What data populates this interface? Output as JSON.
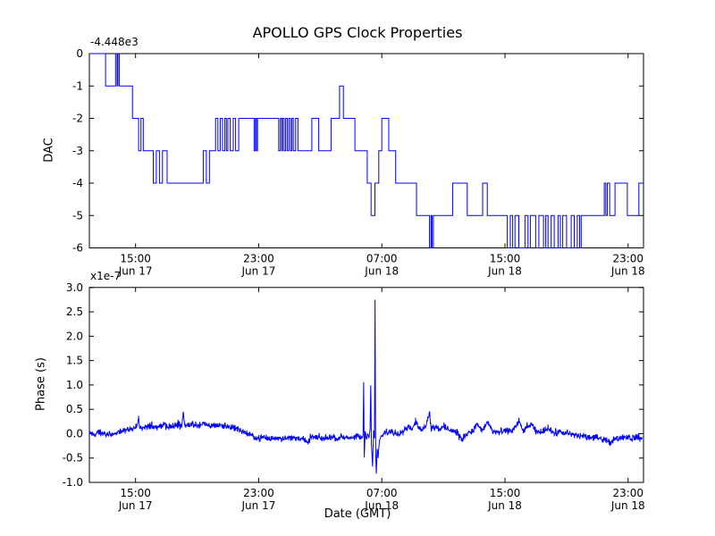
{
  "figure": {
    "title": "APOLLO GPS Clock Properties",
    "background": "#ffffff"
  },
  "colors": {
    "line": "#0000ff",
    "axis": "#000000",
    "text": "#000000"
  },
  "x_axis": {
    "label": "Date (GMT)",
    "range_hours": [
      0,
      36
    ],
    "ticks": [
      {
        "h": 3,
        "time": "15:00",
        "date": "Jun 17"
      },
      {
        "h": 11,
        "time": "23:00",
        "date": "Jun 17"
      },
      {
        "h": 19,
        "time": "07:00",
        "date": "Jun 18"
      },
      {
        "h": 27,
        "time": "15:00",
        "date": "Jun 18"
      },
      {
        "h": 35,
        "time": "23:00",
        "date": "Jun 18"
      }
    ]
  },
  "chart_data": [
    {
      "type": "line",
      "subtype": "steps",
      "title": "APOLLO GPS Clock Properties",
      "ylabel": "DAC",
      "offset_text": "-4.448e3",
      "ylim": [
        -6,
        0
      ],
      "xlim_hours": [
        0,
        36
      ],
      "grid": false,
      "yticks": [
        {
          "v": 0,
          "label": "0"
        },
        {
          "v": -1,
          "label": "-1"
        },
        {
          "v": -2,
          "label": "-2"
        },
        {
          "v": -3,
          "label": "-3"
        },
        {
          "v": -4,
          "label": "-4"
        },
        {
          "v": -5,
          "label": "-5"
        },
        {
          "v": -6,
          "label": "-6"
        }
      ],
      "steps": [
        [
          0,
          0
        ],
        [
          1.05,
          -1
        ],
        [
          1.7,
          0
        ],
        [
          1.8,
          -1
        ],
        [
          1.86,
          0
        ],
        [
          1.95,
          -1
        ],
        [
          2.8,
          -2
        ],
        [
          3.2,
          -3
        ],
        [
          3.35,
          -2
        ],
        [
          3.5,
          -3
        ],
        [
          4.15,
          -4
        ],
        [
          4.35,
          -3
        ],
        [
          4.55,
          -4
        ],
        [
          4.75,
          -3
        ],
        [
          5.05,
          -4
        ],
        [
          7.4,
          -3
        ],
        [
          7.6,
          -4
        ],
        [
          7.8,
          -3
        ],
        [
          8.2,
          -2
        ],
        [
          8.35,
          -3
        ],
        [
          8.5,
          -2
        ],
        [
          8.65,
          -3
        ],
        [
          8.8,
          -2
        ],
        [
          8.9,
          -3
        ],
        [
          9,
          -2
        ],
        [
          9.15,
          -3
        ],
        [
          9.35,
          -2
        ],
        [
          9.5,
          -3
        ],
        [
          9.7,
          -2
        ],
        [
          10.7,
          -3
        ],
        [
          10.78,
          -2
        ],
        [
          10.85,
          -3
        ],
        [
          10.92,
          -2
        ],
        [
          12.3,
          -3
        ],
        [
          12.4,
          -2
        ],
        [
          12.5,
          -3
        ],
        [
          12.55,
          -2
        ],
        [
          12.65,
          -3
        ],
        [
          12.75,
          -2
        ],
        [
          12.85,
          -3
        ],
        [
          12.95,
          -2
        ],
        [
          13.05,
          -3
        ],
        [
          13.15,
          -2
        ],
        [
          13.25,
          -3
        ],
        [
          13.4,
          -2
        ],
        [
          13.55,
          -3
        ],
        [
          14.45,
          -2
        ],
        [
          14.9,
          -3
        ],
        [
          15.7,
          -2
        ],
        [
          16.25,
          -1
        ],
        [
          16.5,
          -2
        ],
        [
          17.25,
          -3
        ],
        [
          18.05,
          -4
        ],
        [
          18.3,
          -5
        ],
        [
          18.55,
          -4
        ],
        [
          18.8,
          -3
        ],
        [
          19,
          -2
        ],
        [
          19.45,
          -3
        ],
        [
          19.9,
          -4
        ],
        [
          21.25,
          -5
        ],
        [
          22.1,
          -6
        ],
        [
          22.2,
          -5
        ],
        [
          22.26,
          -6
        ],
        [
          22.35,
          -5
        ],
        [
          23.6,
          -4
        ],
        [
          24.55,
          -5
        ],
        [
          25.55,
          -4
        ],
        [
          25.85,
          -5
        ],
        [
          27.15,
          -6
        ],
        [
          27.35,
          -5
        ],
        [
          27.5,
          -6
        ],
        [
          27.65,
          -5
        ],
        [
          27.9,
          -6
        ],
        [
          28.3,
          -5
        ],
        [
          28.5,
          -6
        ],
        [
          28.65,
          -5
        ],
        [
          29,
          -6
        ],
        [
          29.2,
          -5
        ],
        [
          29.5,
          -6
        ],
        [
          29.65,
          -5
        ],
        [
          29.8,
          -6
        ],
        [
          30,
          -5
        ],
        [
          30.2,
          -6
        ],
        [
          30.45,
          -5
        ],
        [
          30.6,
          -6
        ],
        [
          30.75,
          -5
        ],
        [
          31,
          -6
        ],
        [
          31.3,
          -5
        ],
        [
          31.5,
          -6
        ],
        [
          31.7,
          -5
        ],
        [
          31.85,
          -6
        ],
        [
          31.95,
          -5
        ],
        [
          33.45,
          -4
        ],
        [
          33.55,
          -5
        ],
        [
          33.65,
          -4
        ],
        [
          33.8,
          -5
        ],
        [
          34.15,
          -4
        ],
        [
          34.95,
          -5
        ],
        [
          35.7,
          -4
        ]
      ]
    },
    {
      "type": "line",
      "subtype": "noisy",
      "ylabel": "Phase (s)",
      "xlabel": "Date (GMT)",
      "offset_text": "x1e-7",
      "units": "1e-7 s",
      "ylim": [
        -1.0,
        3.0
      ],
      "xlim_hours": [
        0,
        36
      ],
      "grid": false,
      "noise_amplitude": 0.05,
      "yticks": [
        {
          "v": 3,
          "label": "3.0"
        },
        {
          "v": 2.5,
          "label": "2.5"
        },
        {
          "v": 2,
          "label": "2.0"
        },
        {
          "v": 1.5,
          "label": "1.5"
        },
        {
          "v": 1,
          "label": "1.0"
        },
        {
          "v": 0.5,
          "label": "0.5"
        },
        {
          "v": 0,
          "label": "0.0"
        },
        {
          "v": -0.5,
          "label": "-0.5"
        },
        {
          "v": -1,
          "label": "-1.0"
        }
      ],
      "major_spikes": [
        [
          17.82,
          1.05
        ],
        [
          18.28,
          1.0
        ],
        [
          18.56,
          2.75
        ],
        [
          18.64,
          -0.82
        ]
      ],
      "anchors": [
        [
          0,
          0.02
        ],
        [
          0.3,
          -0.02
        ],
        [
          0.6,
          0.03
        ],
        [
          1,
          0.02
        ],
        [
          1.4,
          -0.03
        ],
        [
          1.8,
          0.04
        ],
        [
          2.2,
          0.06
        ],
        [
          2.6,
          0.09
        ],
        [
          3,
          0.12
        ],
        [
          3.2,
          0.3
        ],
        [
          3.25,
          0.1
        ],
        [
          3.6,
          0.14
        ],
        [
          4,
          0.16
        ],
        [
          4.4,
          0.13
        ],
        [
          4.8,
          0.17
        ],
        [
          5.2,
          0.15
        ],
        [
          5.6,
          0.17
        ],
        [
          6,
          0.16
        ],
        [
          6.1,
          0.44
        ],
        [
          6.2,
          0.16
        ],
        [
          6.6,
          0.2
        ],
        [
          7,
          0.17
        ],
        [
          7.4,
          0.2
        ],
        [
          7.8,
          0.16
        ],
        [
          8.2,
          0.19
        ],
        [
          8.6,
          0.17
        ],
        [
          9,
          0.15
        ],
        [
          9.4,
          0.12
        ],
        [
          9.8,
          0.07
        ],
        [
          10.2,
          0.01
        ],
        [
          10.6,
          -0.05
        ],
        [
          11,
          -0.09
        ],
        [
          11.4,
          -0.08
        ],
        [
          11.8,
          -0.11
        ],
        [
          12.2,
          -0.08
        ],
        [
          12.6,
          -0.1
        ],
        [
          13,
          -0.08
        ],
        [
          13.4,
          -0.1
        ],
        [
          13.8,
          -0.08
        ],
        [
          14.2,
          -0.2
        ],
        [
          14.4,
          -0.07
        ],
        [
          14.8,
          -0.08
        ],
        [
          15.2,
          -0.1
        ],
        [
          15.6,
          -0.07
        ],
        [
          16,
          -0.09
        ],
        [
          16.4,
          -0.06
        ],
        [
          16.8,
          -0.08
        ],
        [
          17.2,
          -0.1
        ],
        [
          17.5,
          -0.04
        ],
        [
          17.7,
          -0.08
        ],
        [
          17.78,
          -0.05
        ],
        [
          17.82,
          1.05
        ],
        [
          17.86,
          -0.5
        ],
        [
          17.92,
          0.05
        ],
        [
          18,
          -0.12
        ],
        [
          18.08,
          0
        ],
        [
          18.16,
          -0.08
        ],
        [
          18.24,
          0.1
        ],
        [
          18.28,
          1.0
        ],
        [
          18.32,
          -0.2
        ],
        [
          18.4,
          -0.68
        ],
        [
          18.46,
          0.05
        ],
        [
          18.52,
          -0.1
        ],
        [
          18.56,
          2.75
        ],
        [
          18.6,
          -0.35
        ],
        [
          18.64,
          -0.82
        ],
        [
          18.7,
          -0.3
        ],
        [
          18.76,
          -0.5
        ],
        [
          18.84,
          -0.15
        ],
        [
          18.95,
          -0.05
        ],
        [
          19.2,
          0
        ],
        [
          19.6,
          0.04
        ],
        [
          20,
          0.01
        ],
        [
          20.4,
          0.07
        ],
        [
          20.7,
          0.14
        ],
        [
          21,
          0.1
        ],
        [
          21.2,
          0.26
        ],
        [
          21.45,
          0.1
        ],
        [
          21.8,
          0.12
        ],
        [
          22.1,
          0.44
        ],
        [
          22.2,
          0.12
        ],
        [
          22.5,
          0.14
        ],
        [
          22.8,
          0.1
        ],
        [
          23.1,
          0.13
        ],
        [
          23.5,
          0.08
        ],
        [
          23.9,
          0.02
        ],
        [
          24.2,
          -0.13
        ],
        [
          24.5,
          0
        ],
        [
          24.9,
          0.05
        ],
        [
          25.2,
          0.22
        ],
        [
          25.5,
          0.05
        ],
        [
          25.9,
          0.24
        ],
        [
          26.2,
          0.04
        ],
        [
          26.6,
          0.03
        ],
        [
          27,
          0.05
        ],
        [
          27.5,
          0.07
        ],
        [
          27.9,
          0.26
        ],
        [
          28.2,
          0.05
        ],
        [
          28.7,
          0.2
        ],
        [
          29,
          0.03
        ],
        [
          29.4,
          0.04
        ],
        [
          29.8,
          0.13
        ],
        [
          30.2,
          0
        ],
        [
          30.6,
          0.04
        ],
        [
          31,
          0
        ],
        [
          31.5,
          -0.03
        ],
        [
          32,
          -0.05
        ],
        [
          32.5,
          -0.07
        ],
        [
          33,
          -0.09
        ],
        [
          33.5,
          -0.11
        ],
        [
          33.9,
          -0.2
        ],
        [
          34.1,
          -0.1
        ],
        [
          34.5,
          -0.08
        ],
        [
          34.9,
          -0.06
        ],
        [
          35.2,
          -0.1
        ],
        [
          35.5,
          -0.07
        ],
        [
          35.9,
          -0.12
        ]
      ]
    }
  ]
}
